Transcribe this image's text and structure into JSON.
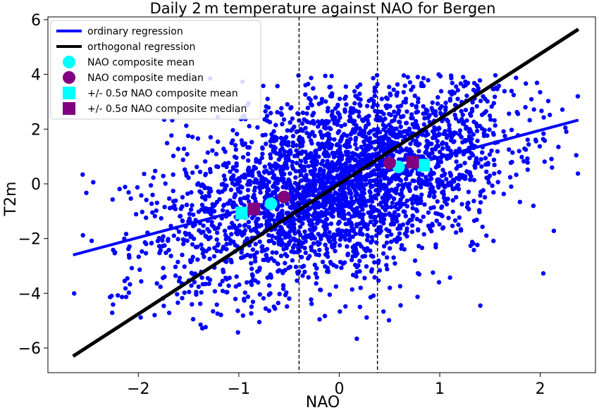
{
  "chart_data": {
    "type": "scatter",
    "title": "Daily 2 m temperature against NAO for Bergen",
    "xlabel": "NAO",
    "ylabel": "T2m",
    "xlim": [
      -2.9,
      2.55
    ],
    "ylim": [
      -6.9,
      6.1
    ],
    "x_ticks": [
      -2,
      -1,
      0,
      1,
      2
    ],
    "x_tick_labels": [
      "−2",
      "−1",
      "0",
      "1",
      "2"
    ],
    "y_ticks": [
      -6,
      -4,
      -2,
      0,
      2,
      4,
      6
    ],
    "y_tick_labels": [
      "−6",
      "−4",
      "−2",
      "0",
      "2",
      "4",
      "6"
    ],
    "grid": false,
    "legend_position": "upper-left",
    "reference_lines_x": [
      -0.4,
      0.38
    ],
    "regression_lines": [
      {
        "name": "ordinary regression",
        "color": "#0000ff",
        "x": [
          -2.65,
          2.38
        ],
        "y": [
          -2.6,
          2.33
        ]
      },
      {
        "name": "orthogonal regression",
        "color": "#000000",
        "x": [
          -2.65,
          2.38
        ],
        "y": [
          -6.3,
          5.65
        ]
      }
    ],
    "composite_points": [
      {
        "name": "NAO composite mean",
        "marker": "circle",
        "color": "#00ffff",
        "points": [
          {
            "x": -0.68,
            "y": -0.73
          },
          {
            "x": 0.59,
            "y": 0.62
          }
        ]
      },
      {
        "name": "NAO composite median",
        "marker": "circle",
        "color": "#800080",
        "points": [
          {
            "x": -0.55,
            "y": -0.48
          },
          {
            "x": 0.5,
            "y": 0.76
          }
        ]
      },
      {
        "name": "+/- 0.5σ NAO composite mean",
        "marker": "square",
        "color": "#00ffff",
        "points": [
          {
            "x": -0.97,
            "y": -1.07
          },
          {
            "x": 0.84,
            "y": 0.68
          }
        ]
      },
      {
        "name": "+/- 0.5σ NAO composite median",
        "marker": "square",
        "color": "#800080",
        "points": [
          {
            "x": -0.85,
            "y": -0.92
          },
          {
            "x": 0.73,
            "y": 0.79
          }
        ]
      }
    ],
    "scatter_series": {
      "name": "daily values",
      "color": "#0000ff",
      "approx_count": 3200,
      "x_range": [
        -2.65,
        2.38
      ],
      "y_range": [
        -6.0,
        4.0
      ]
    }
  },
  "legend": {
    "items": [
      {
        "label": "ordinary regression",
        "symbol": "line",
        "color": "#0000ff"
      },
      {
        "label": "orthogonal regression",
        "symbol": "line",
        "color": "#000000"
      },
      {
        "label": "NAO composite mean",
        "symbol": "circle",
        "color": "#00ffff"
      },
      {
        "label": "NAO composite median",
        "symbol": "circle",
        "color": "#800080"
      },
      {
        "label": "+/- 0.5σ NAO composite mean",
        "symbol": "square",
        "color": "#00ffff"
      },
      {
        "label": "+/- 0.5σ NAO composite median",
        "symbol": "square",
        "color": "#800080"
      }
    ]
  }
}
